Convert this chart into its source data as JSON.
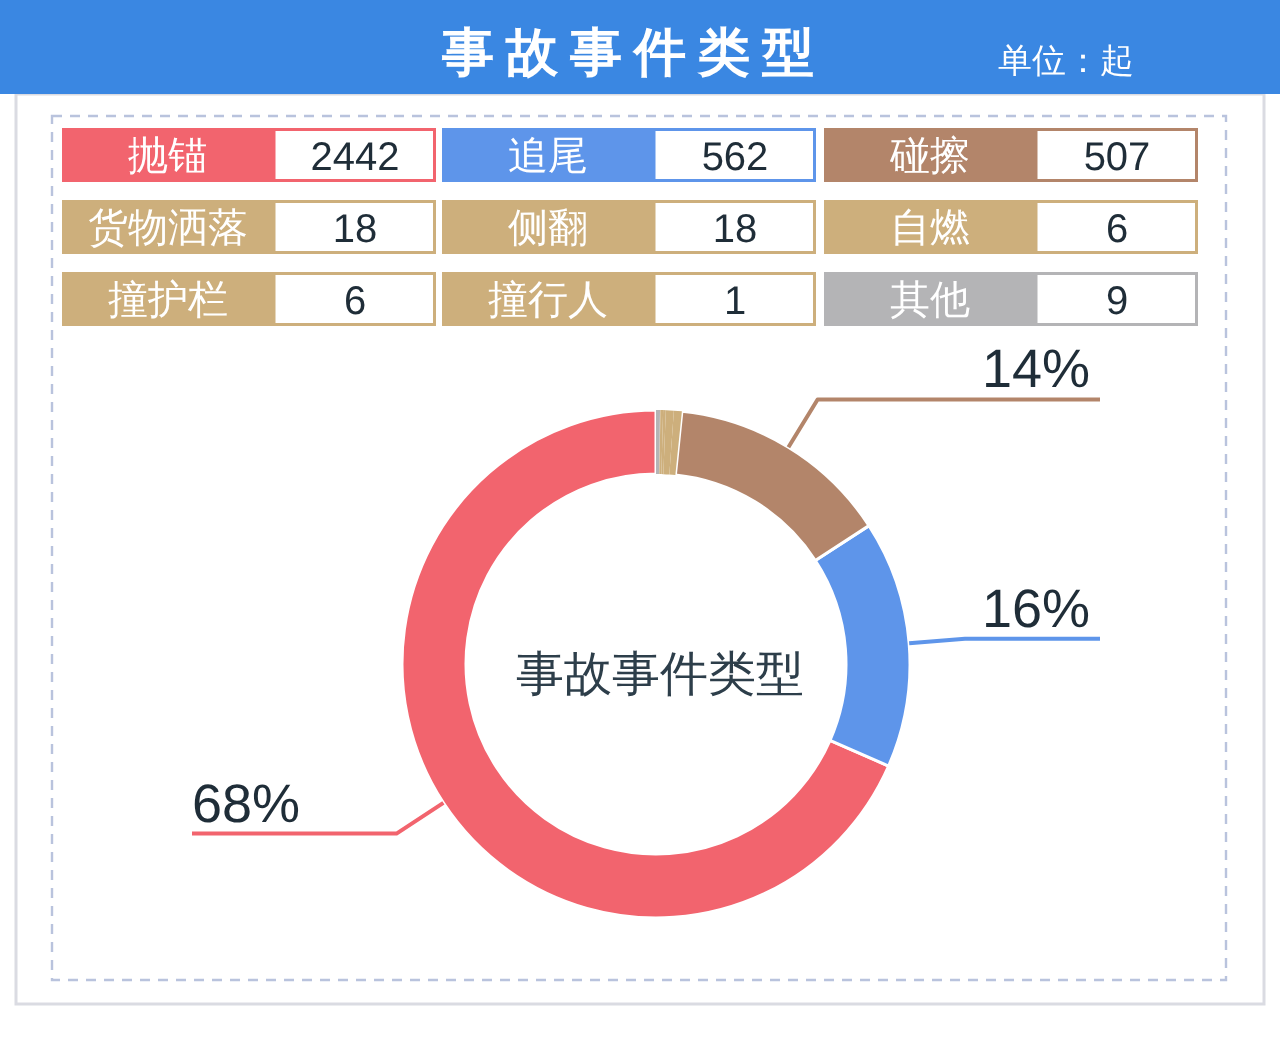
{
  "chart_data": {
    "type": "donut",
    "title": "事故事件类型",
    "categories": [
      "抛锚",
      "追尾",
      "碰擦",
      "货物洒落",
      "侧翻",
      "自燃",
      "撞护栏",
      "撞行人",
      "其他"
    ],
    "values": [
      2442,
      562,
      507,
      18,
      18,
      6,
      6,
      1,
      9
    ],
    "colors": [
      "#f2646e",
      "#5e95ea",
      "#b3856a",
      "#cdaf7c",
      "#cdaf7c",
      "#cdaf7c",
      "#cdaf7c",
      "#cdaf7c",
      "#b4b4b6"
    ],
    "value_labels": [
      "2442",
      "562",
      "507",
      "18",
      "18",
      "6",
      "6",
      "1",
      "9"
    ],
    "legend": "top",
    "annotations": [
      "单位：起",
      "事故事件类型",
      {
        "text": "68%",
        "x": "抛锚"
      },
      {
        "text": "16%",
        "x": "追尾"
      },
      {
        "text": "14%",
        "x": "碰擦"
      }
    ]
  }
}
